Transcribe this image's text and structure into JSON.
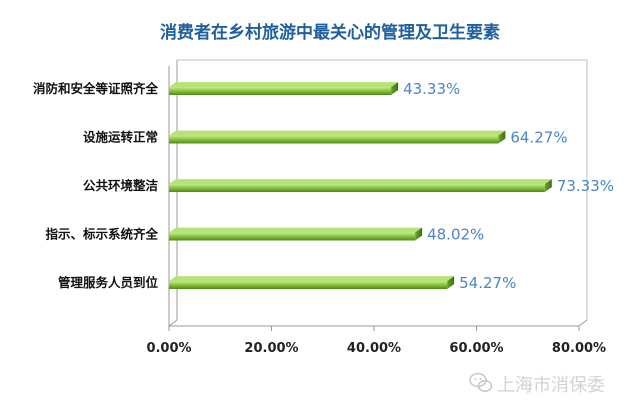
{
  "chart_data": {
    "type": "bar",
    "orientation": "horizontal",
    "title": "消费者在乡村旅游中最关心的管理及卫生要素",
    "categories": [
      "消防和安全等证照齐全",
      "设施运转正常",
      "公共环境整洁",
      "指示、标示系统齐全",
      "管理服务人员到位"
    ],
    "values": [
      43.33,
      64.27,
      73.33,
      48.02,
      54.27
    ],
    "value_labels": [
      "43.33%",
      "64.27%",
      "73.33%",
      "48.02%",
      "54.27%"
    ],
    "x_ticks": [
      "0.00%",
      "20.00%",
      "40.00%",
      "60.00%",
      "80.00%"
    ],
    "xlim": [
      0,
      80
    ],
    "grid": false,
    "bar_color": "#8dc63f",
    "label_color": "#4a86c5",
    "title_color": "#1f5f9e"
  },
  "watermark": {
    "text": "上海市消保委",
    "icon": "wechat-icon"
  }
}
